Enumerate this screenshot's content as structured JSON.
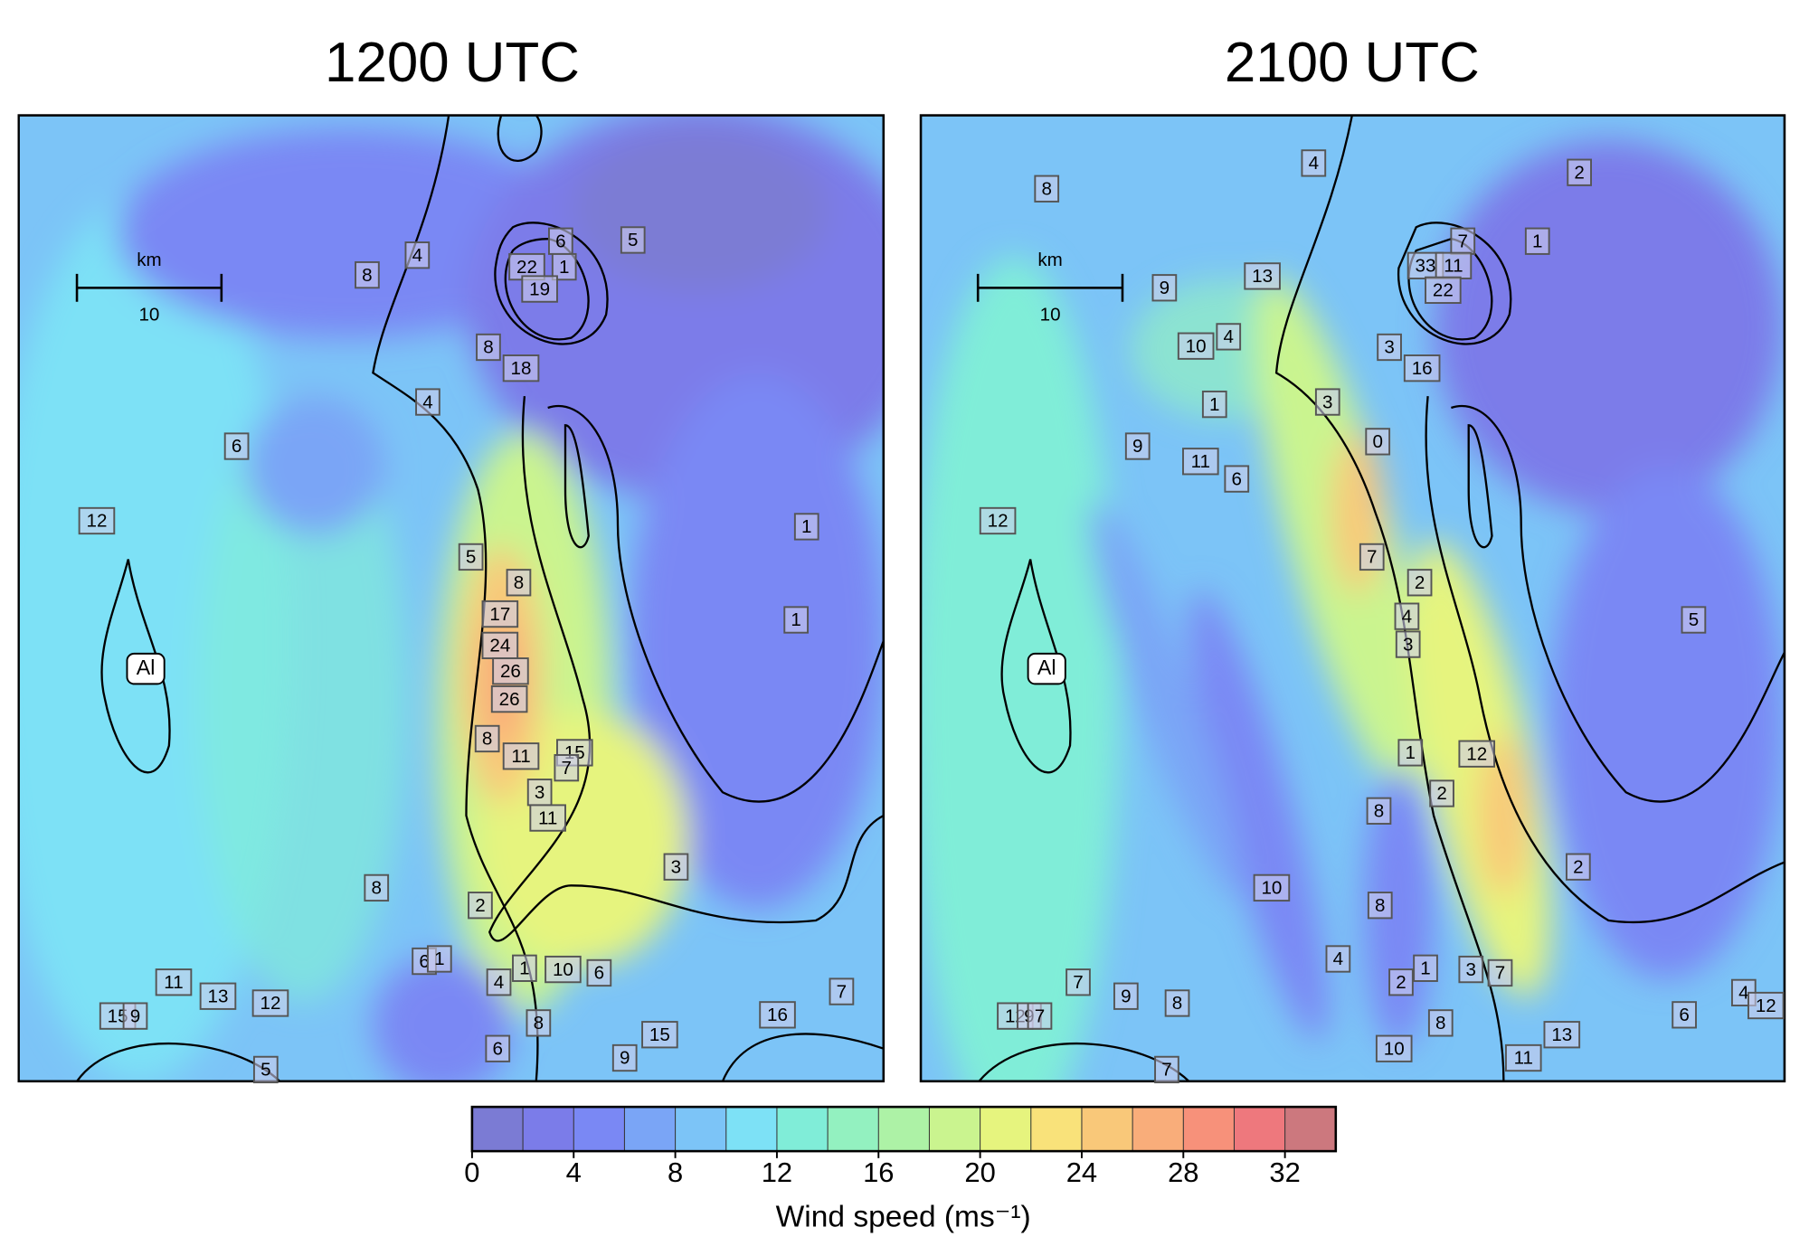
{
  "panels": [
    {
      "title": "1200 UTC",
      "marker": "Al",
      "scale_unit": "km",
      "scale_length": "10",
      "stations": [
        6,
        5,
        4,
        8,
        22,
        1,
        19,
        8,
        18,
        4,
        6,
        12,
        1,
        5,
        8,
        1,
        17,
        24,
        26,
        26,
        8,
        11,
        15,
        7,
        3,
        11,
        3,
        8,
        2,
        6,
        1,
        1,
        10,
        6,
        4,
        11,
        13,
        12,
        15,
        9,
        16,
        7,
        8,
        6,
        15,
        9,
        5
      ]
    },
    {
      "title": "2100 UTC",
      "marker": "Al",
      "scale_unit": "km",
      "scale_length": "10",
      "stations": [
        4,
        8,
        2,
        7,
        1,
        9,
        13,
        33,
        11,
        22,
        10,
        4,
        3,
        16,
        3,
        1,
        0,
        9,
        11,
        6,
        12,
        7,
        2,
        4,
        3,
        5,
        1,
        12,
        2,
        8,
        2,
        10,
        8,
        4,
        1,
        3,
        7,
        2,
        7,
        9,
        8,
        12,
        9,
        7,
        4,
        12,
        6,
        13,
        8,
        10,
        11,
        7
      ]
    }
  ],
  "colorbar": {
    "label": "Wind speed (ms⁻¹)",
    "bins": [
      0,
      2,
      4,
      6,
      8,
      10,
      12,
      14,
      16,
      18,
      20,
      22,
      24,
      26,
      28,
      30,
      32,
      34
    ],
    "colors": [
      "#7b7bd4",
      "#7b7ce9",
      "#7a88f4",
      "#7aa5f6",
      "#7cc4f7",
      "#7de1f6",
      "#80edd8",
      "#93f1c0",
      "#adf2a6",
      "#caf48f",
      "#e6f47e",
      "#f9e27a",
      "#f9c879",
      "#f9ad7a",
      "#f7917a",
      "#ee787d",
      "#cc787e"
    ],
    "ticks": [
      0,
      4,
      8,
      12,
      16,
      20,
      24,
      28,
      32
    ]
  }
}
